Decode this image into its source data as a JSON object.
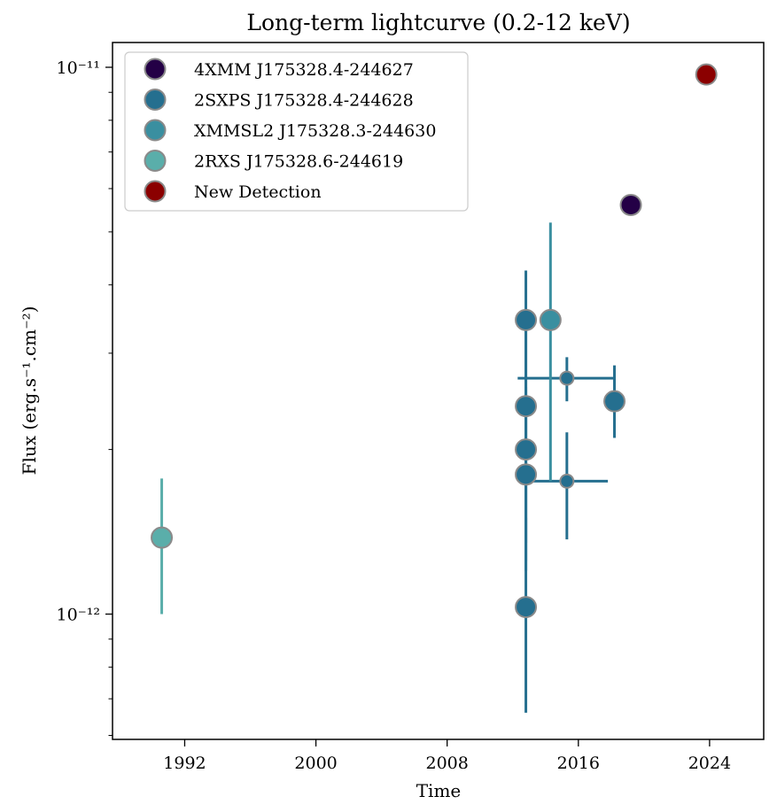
{
  "chart_data": {
    "type": "scatter",
    "title": "Long-term lightcurve (0.2-12 keV)",
    "xlabel": "Time",
    "ylabel": "Flux (erg.s⁻¹.cm⁻²)",
    "xlim": [
      1987.6,
      2027.3
    ],
    "ylim": [
      5.9e-13,
      1.11e-11
    ],
    "yscale": "log",
    "x_ticks": [
      {
        "value": 1992,
        "label": "1992"
      },
      {
        "value": 2000,
        "label": "2000"
      },
      {
        "value": 2008,
        "label": "2008"
      },
      {
        "value": 2016,
        "label": "2016"
      },
      {
        "value": 2024,
        "label": "2024"
      }
    ],
    "y_ticks": [
      {
        "value": 1e-11,
        "label": "10⁻¹¹"
      },
      {
        "value": 1e-12,
        "label": "10⁻¹²"
      }
    ],
    "legend_position": "upper-left",
    "series": [
      {
        "name": "4XMM J175328.4-244627",
        "color": "#240046",
        "points": [
          {
            "x": 2019.2,
            "y": 5.6e-12
          }
        ]
      },
      {
        "name": "2SXPS J175328.4-244628",
        "color": "#256f8f",
        "points": [
          {
            "x": 2012.8,
            "y": 3.45e-12,
            "ylo": 1.35e-12,
            "yhi": 4.25e-12
          },
          {
            "x": 2012.8,
            "y": 2.4e-12,
            "ylo": 1.25e-12,
            "yhi": 3.3e-12
          },
          {
            "x": 2012.8,
            "y": 2e-12,
            "ylo": 1.2e-12,
            "yhi": 2.6e-12
          },
          {
            "x": 2012.8,
            "y": 1.8e-12,
            "ylo": 1.2e-12,
            "yhi": 2.4e-12
          },
          {
            "x": 2012.8,
            "y": 1.03e-12,
            "ylo": 6.6e-13,
            "yhi": 1.5e-12
          },
          {
            "x": 2015.3,
            "y": 2.7e-12,
            "ylo": 2.45e-12,
            "yhi": 2.95e-12,
            "xlo": 2012.3,
            "xhi": 2018.2
          },
          {
            "x": 2015.3,
            "y": 1.75e-12,
            "ylo": 1.37e-12,
            "yhi": 2.15e-12,
            "xlo": 2012.9,
            "xhi": 2017.8
          },
          {
            "x": 2018.2,
            "y": 2.45e-12,
            "ylo": 2.1e-12,
            "yhi": 2.85e-12
          }
        ]
      },
      {
        "name": "XMMSL2 J175328.3-244630",
        "color": "#3a8fa0",
        "points": [
          {
            "x": 2014.3,
            "y": 3.45e-12,
            "ylo": 1.75e-12,
            "yhi": 5.2e-12
          }
        ]
      },
      {
        "name": "2RXS J175328.6-244619",
        "color": "#5aaeaa",
        "points": [
          {
            "x": 1990.6,
            "y": 1.38e-12,
            "ylo": 1e-12,
            "yhi": 1.77e-12
          }
        ]
      },
      {
        "name": "New Detection",
        "color": "#8b0000",
        "points": [
          {
            "x": 2023.8,
            "y": 9.7e-12
          }
        ]
      }
    ]
  }
}
